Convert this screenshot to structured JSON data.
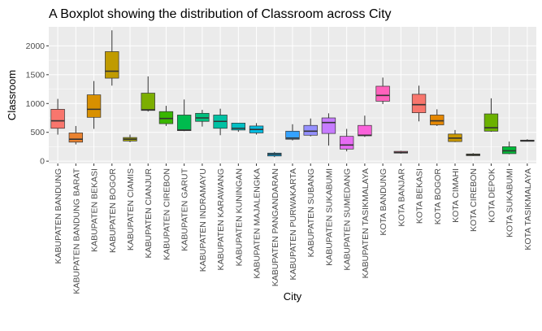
{
  "chart_data": {
    "type": "boxplot",
    "title": "A Boxplot showing the distribution of Classroom across City",
    "xlabel": "City",
    "ylabel": "Classroom",
    "ylim": [
      -40,
      2330
    ],
    "yticks": [
      0,
      500,
      1000,
      1500,
      2000
    ],
    "grid": true,
    "legend": "none",
    "categories": [
      "KABUPATEN BANDUNG",
      "KABUPATEN BANDUNG BARAT",
      "KABUPATEN BEKASI",
      "KABUPATEN BOGOR",
      "KABUPATEN CIAMIS",
      "KABUPATEN CIANJUR",
      "KABUPATEN CIREBON",
      "KABUPATEN GARUT",
      "KABUPATEN INDRAMAYU",
      "KABUPATEN KARAWANG",
      "KABUPATEN KUNINGAN",
      "KABUPATEN MAJALENGKA",
      "KABUPATEN PANGANDARAN",
      "KABUPATEN PURWAKARTA",
      "KABUPATEN SUBANG",
      "KABUPATEN SUKABUMI",
      "KABUPATEN SUMEDANG",
      "KABUPATEN TASIKMALAYA",
      "KOTA BANDUNG",
      "KOTA BANJAR",
      "KOTA BEKASI",
      "KOTA BOGOR",
      "KOTA CIMAHI",
      "KOTA CIREBON",
      "KOTA DEPOK",
      "KOTA SUKABUMI",
      "KOTA TASIKMALAYA"
    ],
    "boxes": [
      {
        "min": 460,
        "q1": 570,
        "median": 700,
        "q3": 900,
        "max": 1080,
        "color": "#F8766D"
      },
      {
        "min": 290,
        "q1": 330,
        "median": 380,
        "q3": 490,
        "max": 610,
        "color": "#EA8331"
      },
      {
        "min": 560,
        "q1": 760,
        "median": 900,
        "q3": 1150,
        "max": 1390,
        "color": "#D89000"
      },
      {
        "min": 1310,
        "q1": 1440,
        "median": 1560,
        "q3": 1900,
        "max": 2270,
        "color": "#C09B00"
      },
      {
        "min": 330,
        "q1": 350,
        "median": 380,
        "q3": 410,
        "max": 460,
        "color": "#A3A500"
      },
      {
        "min": 860,
        "q1": 880,
        "median": 890,
        "q3": 1180,
        "max": 1470,
        "color": "#7CAE00"
      },
      {
        "min": 610,
        "q1": 650,
        "median": 740,
        "q3": 860,
        "max": 960,
        "color": "#39B600"
      },
      {
        "min": 520,
        "q1": 530,
        "median": 540,
        "q3": 800,
        "max": 1070,
        "color": "#00BB4E"
      },
      {
        "min": 600,
        "q1": 690,
        "median": 750,
        "q3": 830,
        "max": 890,
        "color": "#00BF7D"
      },
      {
        "min": 450,
        "q1": 570,
        "median": 690,
        "q3": 800,
        "max": 910,
        "color": "#00C1A3"
      },
      {
        "min": 510,
        "q1": 540,
        "median": 570,
        "q3": 660,
        "max": 660,
        "color": "#00BFC4"
      },
      {
        "min": 460,
        "q1": 490,
        "median": 550,
        "q3": 610,
        "max": 660,
        "color": "#00BAE0"
      },
      {
        "min": 70,
        "q1": 90,
        "median": 120,
        "q3": 140,
        "max": 160,
        "color": "#00B0F6"
      },
      {
        "min": 360,
        "q1": 380,
        "median": 400,
        "q3": 520,
        "max": 640,
        "color": "#35A2FF"
      },
      {
        "min": 430,
        "q1": 450,
        "median": 520,
        "q3": 620,
        "max": 740,
        "color": "#9590FF"
      },
      {
        "min": 270,
        "q1": 480,
        "median": 670,
        "q3": 750,
        "max": 830,
        "color": "#C77CFF"
      },
      {
        "min": 170,
        "q1": 210,
        "median": 280,
        "q3": 430,
        "max": 560,
        "color": "#E76BF3"
      },
      {
        "min": 420,
        "q1": 440,
        "median": 450,
        "q3": 620,
        "max": 790,
        "color": "#FA62DB"
      },
      {
        "min": 990,
        "q1": 1040,
        "median": 1140,
        "q3": 1300,
        "max": 1450,
        "color": "#FF62BC"
      },
      {
        "min": 130,
        "q1": 140,
        "median": 150,
        "q3": 170,
        "max": 180,
        "color": "#FF6C91"
      },
      {
        "min": 690,
        "q1": 840,
        "median": 980,
        "q3": 1160,
        "max": 1310,
        "color": "#F8766D"
      },
      {
        "min": 610,
        "q1": 630,
        "median": 700,
        "q3": 800,
        "max": 900,
        "color": "#E58700"
      },
      {
        "min": 330,
        "q1": 340,
        "median": 400,
        "q3": 470,
        "max": 540,
        "color": "#C99800"
      },
      {
        "min": 90,
        "q1": 95,
        "median": 110,
        "q3": 125,
        "max": 140,
        "color": "#A3A500"
      },
      {
        "min": 510,
        "q1": 520,
        "median": 580,
        "q3": 820,
        "max": 1090,
        "color": "#6BB100"
      },
      {
        "min": 120,
        "q1": 130,
        "median": 180,
        "q3": 250,
        "max": 340,
        "color": "#00BA38"
      },
      {
        "min": 340,
        "q1": 345,
        "median": 350,
        "q3": 365,
        "max": 380,
        "color": "#00BF7D"
      }
    ]
  }
}
